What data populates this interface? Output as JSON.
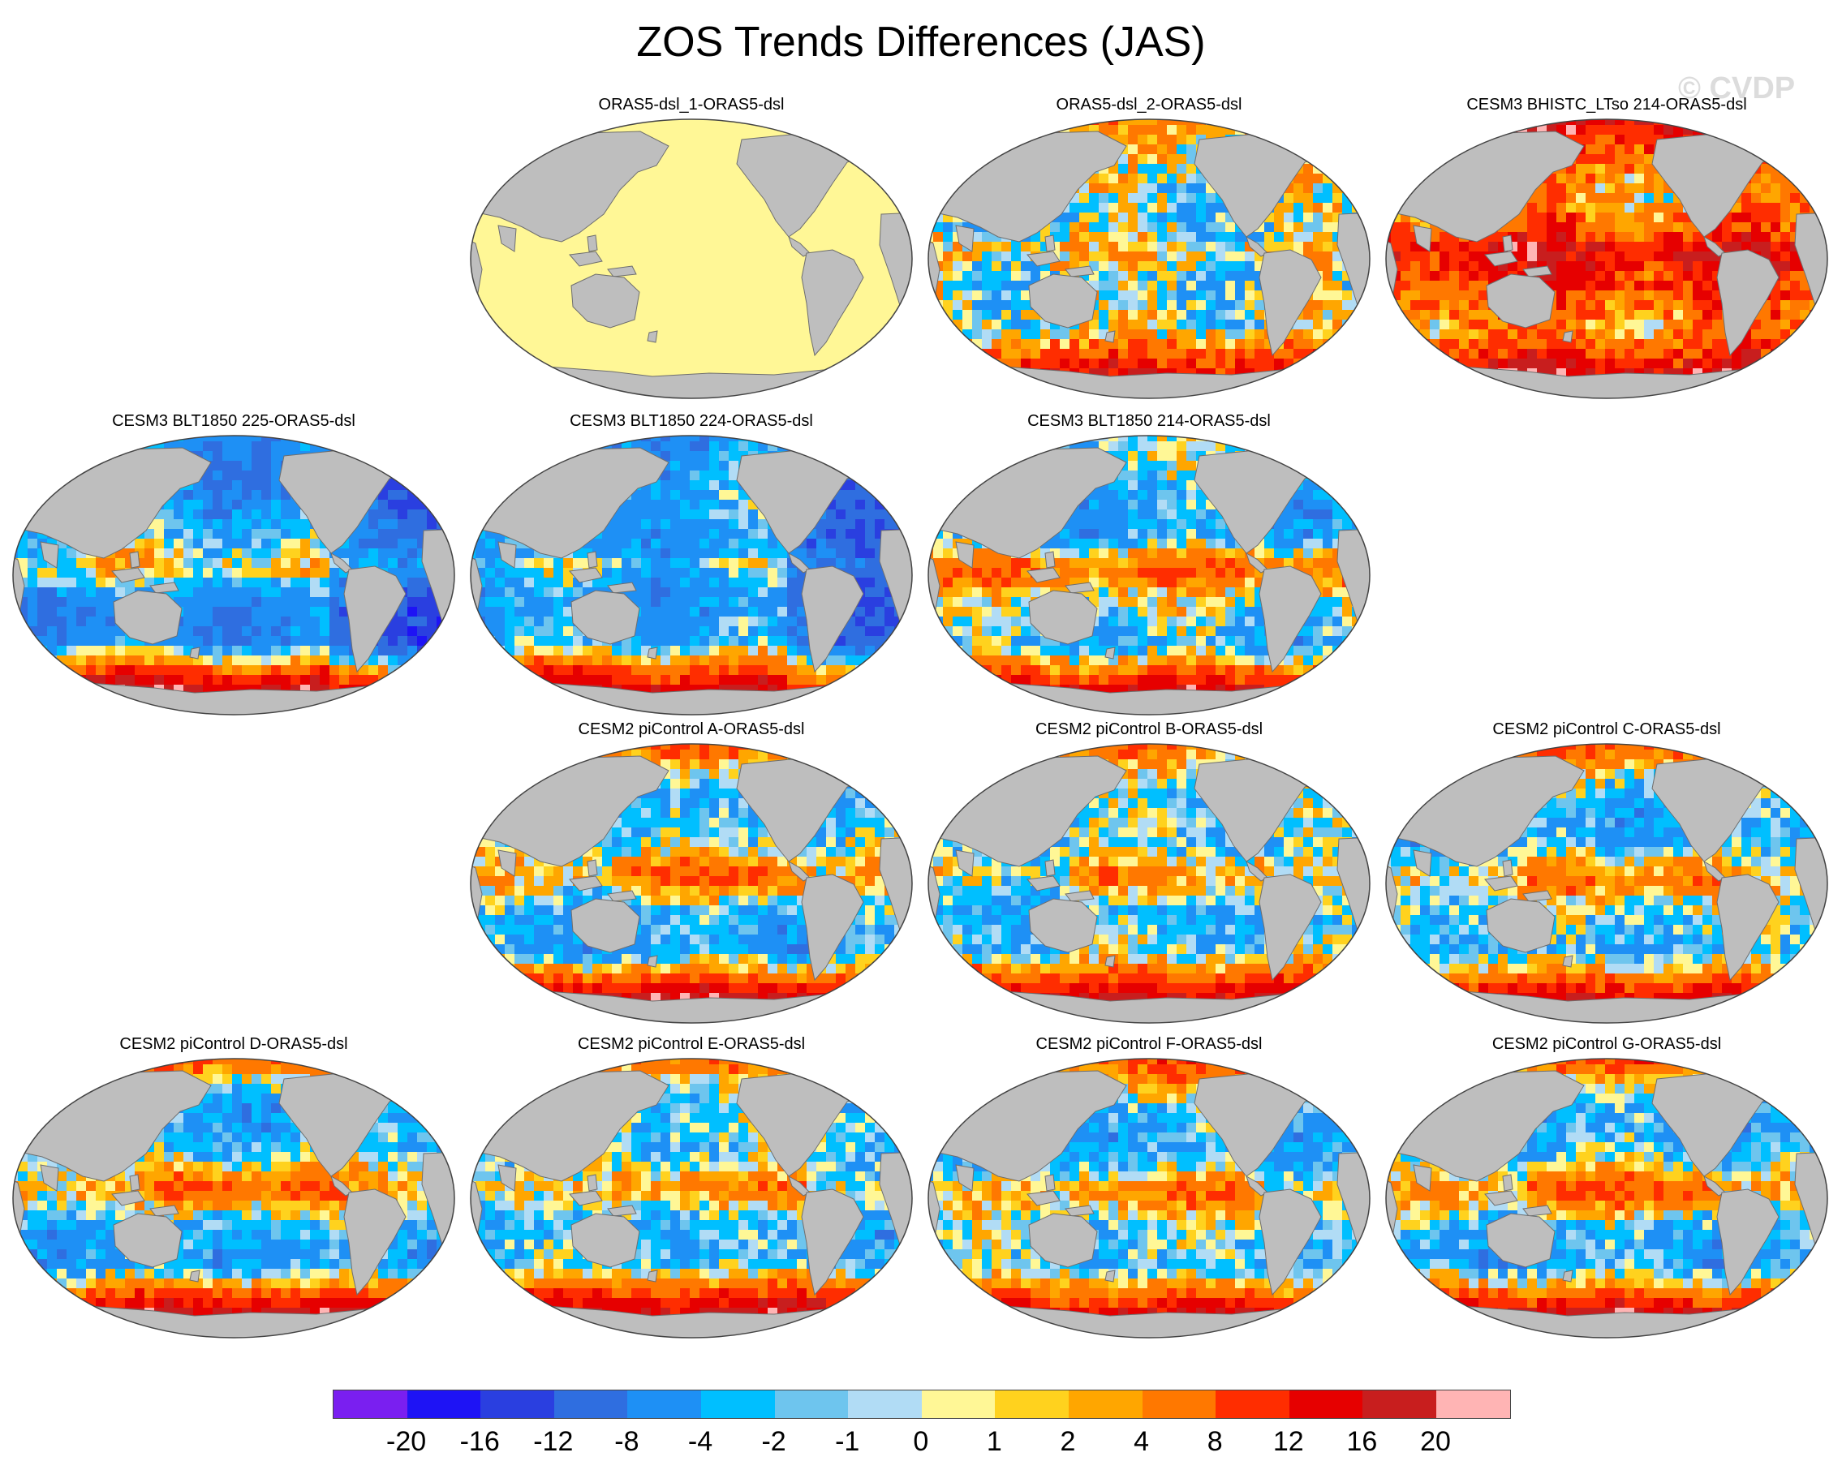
{
  "figure": {
    "title": "ZOS Trends Differences (JAS)",
    "watermark": "© CVDP"
  },
  "map_style": {
    "land_color": "#bebebe",
    "coast_color": "#6e6e6e",
    "ocean_uniform_color": "#fff796",
    "projection": "Robinson, centered on Pacific"
  },
  "panels": [
    {
      "title": "ORAS5-dsl_1-ORAS5-dsl",
      "pattern": "uniform"
    },
    {
      "title": "ORAS5-dsl_2-ORAS5-dsl",
      "pattern": "mixed"
    },
    {
      "title": "CESM3 BHISTC_LTso 214-ORAS5-dsl",
      "pattern": "warm"
    },
    {
      "title": "CESM3 BLT1850 225-ORAS5-dsl",
      "pattern": "cold"
    },
    {
      "title": "CESM3 BLT1850 224-ORAS5-dsl",
      "pattern": "cold"
    },
    {
      "title": "CESM3 BLT1850 214-ORAS5-dsl",
      "pattern": "coldmix"
    },
    {
      "title": "CESM2 piControl A-ORAS5-dsl",
      "pattern": "pi"
    },
    {
      "title": "CESM2 piControl B-ORAS5-dsl",
      "pattern": "pi"
    },
    {
      "title": "CESM2 piControl C-ORAS5-dsl",
      "pattern": "pi"
    },
    {
      "title": "CESM2 piControl D-ORAS5-dsl",
      "pattern": "pi"
    },
    {
      "title": "CESM2 piControl E-ORAS5-dsl",
      "pattern": "pi"
    },
    {
      "title": "CESM2 piControl F-ORAS5-dsl",
      "pattern": "pi"
    },
    {
      "title": "CESM2 piControl G-ORAS5-dsl",
      "pattern": "pi"
    }
  ],
  "colorbar": {
    "colors": [
      "#7a1ff0",
      "#1e13f5",
      "#2a3fe0",
      "#2f6ee0",
      "#1e90f5",
      "#00bfff",
      "#6ec5ee",
      "#b1dcf5",
      "#fff796",
      "#ffd21e",
      "#ffa600",
      "#ff7800",
      "#ff2d00",
      "#e60000",
      "#c81e1e",
      "#ffb4b4"
    ],
    "labels": [
      "-20",
      "-16",
      "-12",
      "-8",
      "-4",
      "-2",
      "-1",
      "0",
      "1",
      "2",
      "4",
      "8",
      "12",
      "16",
      "20"
    ]
  }
}
